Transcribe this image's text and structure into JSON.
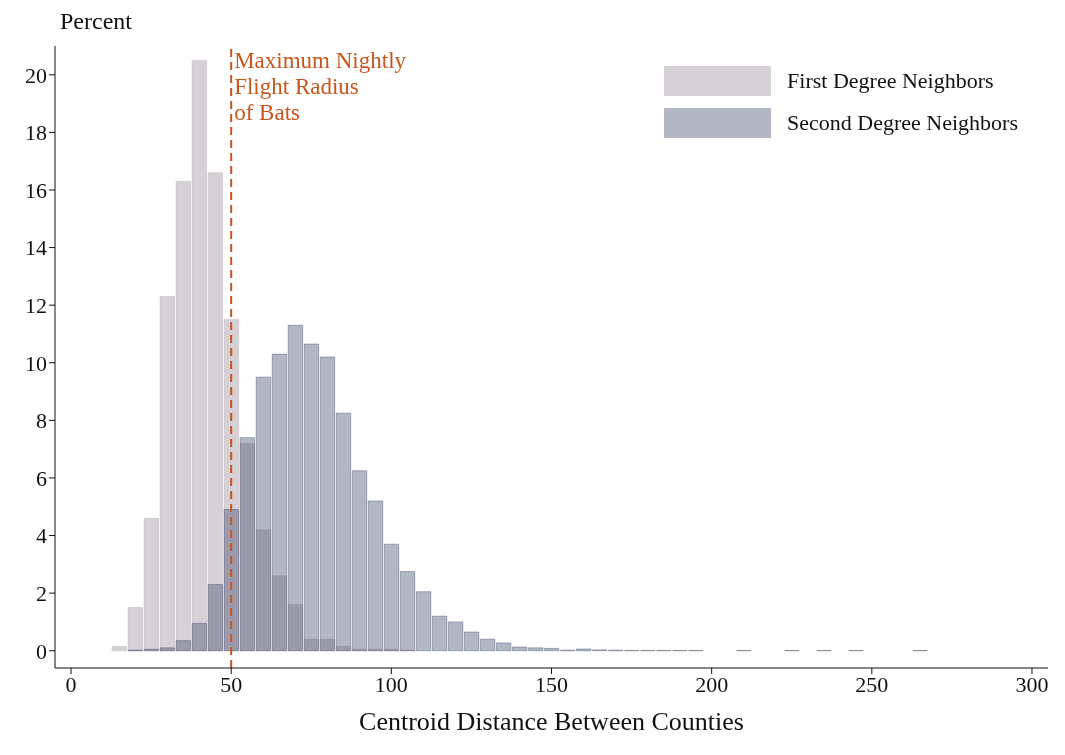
{
  "chart_data": {
    "type": "histogram",
    "ylabel": "Percent",
    "xlabel": "Centroid Distance Between Counties",
    "bins": [
      12.5,
      17.5,
      22.5,
      27.5,
      32.5,
      37.5,
      42.5,
      47.5,
      52.5,
      57.5,
      62.5,
      67.5,
      72.5,
      77.5,
      82.5,
      87.5,
      92.5,
      97.5,
      102.5,
      107.5,
      112.5,
      117.5,
      122.5,
      127.5,
      132.5,
      137.5,
      142.5,
      147.5,
      152.5,
      157.5,
      162.5,
      167.5,
      172.5,
      177.5,
      182.5,
      187.5,
      192.5,
      197.5,
      202.5,
      207.5,
      212.5,
      217.5,
      222.5,
      227.5,
      232.5,
      237.5,
      242.5,
      247.5,
      252.5,
      257.5,
      262.5,
      267.5
    ],
    "series": [
      {
        "name": "First Degree Neighbors",
        "color": "#d6d1d6",
        "values": [
          0.15,
          1.5,
          4.6,
          12.3,
          16.3,
          20.5,
          16.6,
          11.5,
          7.2,
          4.2,
          2.6,
          1.6,
          0.4,
          0.4,
          0.15,
          0.05,
          0.05,
          0.05,
          0.02,
          0,
          0,
          0,
          0,
          0,
          0,
          0,
          0,
          0,
          0,
          0,
          0,
          0,
          0,
          0,
          0,
          0,
          0,
          0,
          0,
          0,
          0,
          0,
          0,
          0,
          0,
          0,
          0,
          0,
          0,
          0,
          0
        ]
      },
      {
        "name": "Second Degree Neighbors",
        "color": "#41496a",
        "values": [
          0,
          0.02,
          0.05,
          0.1,
          0.35,
          0.95,
          2.3,
          4.9,
          7.4,
          9.5,
          10.3,
          11.3,
          10.65,
          10.2,
          8.25,
          6.25,
          5.2,
          3.7,
          2.75,
          2.05,
          1.2,
          1.0,
          0.65,
          0.4,
          0.27,
          0.13,
          0.1,
          0.08,
          0.02,
          0.06,
          0.03,
          0.02,
          0.01,
          0.01,
          0.01,
          0.01,
          0.01,
          0,
          0,
          0.01,
          0,
          0,
          0.01,
          0,
          0.01,
          0,
          0.01,
          0,
          0,
          0,
          0.01
        ]
      }
    ],
    "xlim": [
      -5,
      305
    ],
    "ylim": [
      -0.6,
      21
    ],
    "xticks": [
      0,
      50,
      100,
      150,
      200,
      250,
      300
    ],
    "yticks": [
      0,
      2,
      4,
      6,
      8,
      10,
      12,
      14,
      16,
      18,
      20
    ],
    "ref_lines": [
      {
        "axis": "x",
        "value": 50,
        "label": "Maximum Nightly\nFlight Radius\nof Bats",
        "color": "#c8551c",
        "line_style": "dashed"
      }
    ],
    "legend": "top right",
    "grid": false
  }
}
